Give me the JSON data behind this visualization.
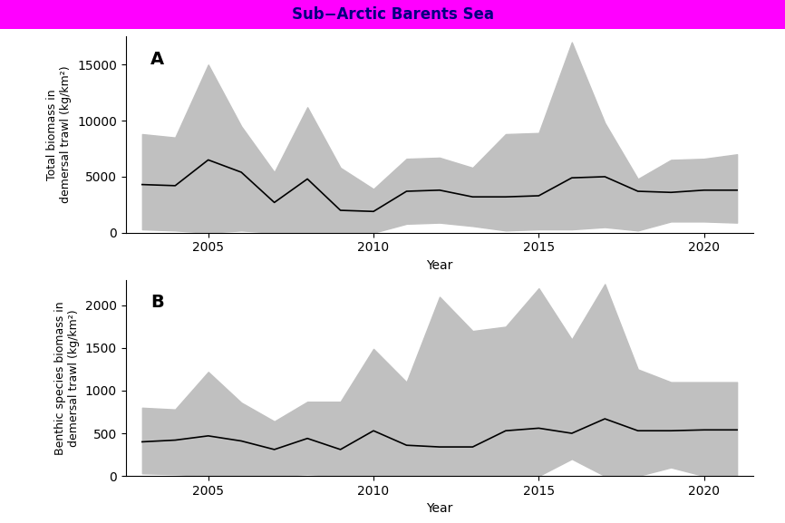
{
  "title": "Sub−Arctic Barents Sea",
  "title_bg_color": "#FF00FF",
  "title_text_color": "#000080",
  "panel_A_label": "A",
  "panel_B_label": "B",
  "ylabel_A": "Total biomass in\ndemersal trawl (kg/km²)",
  "ylabel_B": "Benthic species biomass in\ndemersal trawl (kg/km²)",
  "xlabel": "Year",
  "years": [
    2003,
    2004,
    2005,
    2006,
    2007,
    2008,
    2009,
    2010,
    2011,
    2012,
    2013,
    2014,
    2015,
    2016,
    2017,
    2018,
    2019,
    2020,
    2021
  ],
  "A_mean": [
    4300,
    4200,
    6500,
    5400,
    2700,
    4800,
    2000,
    1900,
    3700,
    3800,
    3200,
    3200,
    3300,
    4900,
    5000,
    3700,
    3600,
    3800,
    3800
  ],
  "A_upper": [
    8800,
    8500,
    15000,
    9500,
    5400,
    11200,
    5800,
    3900,
    6600,
    6700,
    5800,
    8800,
    8900,
    17000,
    9800,
    4800,
    6500,
    6600,
    7000
  ],
  "A_lower": [
    300,
    200,
    0,
    200,
    0,
    0,
    0,
    0,
    800,
    900,
    600,
    200,
    300,
    300,
    500,
    200,
    1000,
    1000,
    900
  ],
  "B_mean": [
    400,
    420,
    470,
    410,
    310,
    440,
    310,
    530,
    360,
    340,
    340,
    530,
    560,
    500,
    670,
    530,
    530,
    540,
    540
  ],
  "B_upper": [
    800,
    780,
    1220,
    860,
    640,
    870,
    870,
    1490,
    1100,
    2100,
    1700,
    1750,
    2200,
    1600,
    2250,
    1250,
    1100,
    1100,
    1100
  ],
  "B_lower": [
    30,
    20,
    0,
    0,
    0,
    20,
    0,
    0,
    0,
    0,
    0,
    0,
    0,
    200,
    0,
    0,
    100,
    0,
    0
  ],
  "fill_color": "#C0C0C0",
  "line_color": "#000000",
  "background_color": "#FFFFFF",
  "ylim_A": [
    0,
    17500
  ],
  "ylim_B": [
    0,
    2300
  ],
  "yticks_A": [
    0,
    5000,
    10000,
    15000
  ],
  "yticks_B": [
    0,
    500,
    1000,
    1500,
    2000
  ],
  "xticks": [
    2005,
    2010,
    2015,
    2020
  ]
}
